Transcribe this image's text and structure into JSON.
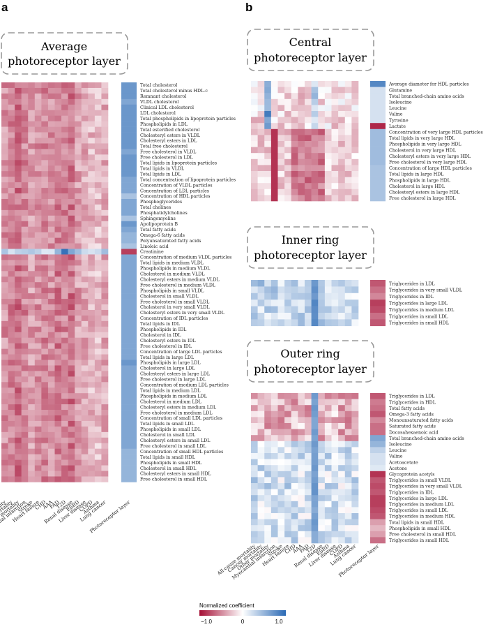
{
  "panel_labels": {
    "a": "a",
    "b": "b"
  },
  "titles": {
    "average": [
      "Average",
      "photoreceptor layer"
    ],
    "central": [
      "Central",
      "photoreceptor layer"
    ],
    "inner": [
      "Inner ring",
      "photoreceptor layer"
    ],
    "outer": [
      "Outer ring",
      "photoreceptor layer"
    ]
  },
  "legend": {
    "title": "Normalized coefficient",
    "ticks": [
      "−1.0",
      "0",
      "1.0"
    ],
    "min_color": "#a50f35",
    "mid_color": "#ffffff",
    "max_color": "#2b6ab5"
  },
  "chart_data": {
    "type": "heatmap",
    "color_scale": {
      "min": -1.0,
      "max": 1.0
    },
    "diseases": [
      "All-cause mortality",
      "Cancer mortality",
      "Other mortality",
      "Myocardial infarction",
      "Stroke",
      "Heart failure",
      "CHD",
      "AAA",
      "PAD",
      "T2D",
      "Renal disease",
      "ESRD",
      "Liver disease",
      "COPD",
      "Asthma",
      "Lung cancer"
    ],
    "column_label": "Photoreceptor layer",
    "panels": [
      {
        "name": "average",
        "rows": [
          "Total cholesterol",
          "Total cholesterol minus HDL-c",
          "Remnant cholesterol",
          "VLDL cholesterol",
          "Clinical LDL cholesterol",
          "LDL cholesterol",
          "Total phospholipids in lipoprotein particles",
          "Phospholipids in LDL",
          "Total esterified cholesterol",
          "Cholesteryl esters in VLDL",
          "Cholesteryl esters in LDL",
          "Total free cholesterol",
          "Free cholesterol in VLDL",
          "Free cholesterol in LDL",
          "Total lipids in lipoprotein particles",
          "Total lipids in VLDL",
          "Total lipids in LDL",
          "Total concentration of lipoprotein particles",
          "Concentration of VLDL particles",
          "Concentration of LDL particles",
          "Concentration of HDL particles",
          "Phosphoglycerides",
          "Total cholines",
          "Phosphatidylcholines",
          "Sphingomyelins",
          "Apolipoprotein B",
          "Total fatty acids",
          "Omega-6 fatty acids",
          "Polyunsaturated fatty acids",
          "Linoleic acid",
          "Creatinine",
          "Concentration of medium VLDL particles",
          "Total lipids in medium VLDL",
          "Phospholipids in medium VLDL",
          "Cholesterol in medium VLDL",
          "Cholesteryl esters in medium VLDL",
          "Free cholesterol in medium VLDL",
          "Phospholipids in small VLDL",
          "Cholesterol in small VLDL",
          "Free cholesterol in small VLDL",
          "Cholesterol in very small VLDL",
          "Cholesteryl esters in very small VLDL",
          "Concentration of IDL particles",
          "Total lipids in IDL",
          "Phospholipids in IDL",
          "Cholesterol in IDL",
          "Cholesteryl esters in IDL",
          "Free cholesterol in IDL",
          "Concentration of large LDL particles",
          "Total lipids in large LDL",
          "Phospholipids in large LDL",
          "Cholesterol in large LDL",
          "Cholesteryl esters in large LDL",
          "Free cholesterol in large LDL",
          "Concentration of medium LDL particles",
          "Total lipids in medium LDL",
          "Phospholipids in medium LDL",
          "Cholesterol in medium LDL",
          "Cholesteryl esters in medium LDL",
          "Free cholesterol in medium LDL",
          "Concentration of small LDL particles",
          "Total lipids in small LDL",
          "Phospholipids in small LDL",
          "Cholesterol in small LDL",
          "Cholesteryl esters in small LDL",
          "Free cholesterol in small LDL",
          "Concentration of small HDL particles",
          "Total lipids in small HDL",
          "Phospholipids in small HDL",
          "Cholesterol in small HDL",
          "Cholesteryl esters in small HDL",
          "Free cholesterol in small HDL"
        ],
        "photoreceptor": [
          0.7,
          0.7,
          0.7,
          0.6,
          0.7,
          0.7,
          0.7,
          0.7,
          0.7,
          0.7,
          0.7,
          0.7,
          0.6,
          0.7,
          0.7,
          0.7,
          0.7,
          0.6,
          0.6,
          0.6,
          0.4,
          0.6,
          0.6,
          0.6,
          0.4,
          0.7,
          0.6,
          0.5,
          0.5,
          0.4,
          -0.8,
          0.6,
          0.6,
          0.6,
          0.6,
          0.6,
          0.6,
          0.6,
          0.6,
          0.6,
          0.6,
          0.6,
          0.6,
          0.6,
          0.6,
          0.6,
          0.6,
          0.6,
          0.6,
          0.6,
          0.7,
          0.6,
          0.6,
          0.6,
          0.6,
          0.6,
          0.6,
          0.6,
          0.6,
          0.6,
          0.6,
          0.6,
          0.6,
          0.6,
          0.6,
          0.6,
          0.5,
          0.5,
          0.5,
          0.5,
          0.5,
          0.5
        ],
        "matrix_pattern": {
          "base": [
            -0.45,
            -0.5,
            -0.6,
            -0.5,
            -0.4,
            -0.45,
            -0.5,
            -0.45,
            -0.55,
            -0.5,
            -0.6,
            -0.4,
            -0.35,
            -0.3,
            -0.25,
            -0.35
          ],
          "notes": "mostly red (negative); creatinine row blue (positive) for most diseases"
        }
      },
      {
        "name": "central",
        "rows": [
          "Average diameter for HDL particles",
          "Glutamine",
          "Total branched-chain amino acids",
          "Isoleucine",
          "Leucine",
          "Valine",
          "Tyrosine",
          "Lactate",
          "Concentration of very large HDL particles",
          "Total lipids in very large HDL",
          "Phospholipids in very large HDL",
          "Cholesterol in very large HDL",
          "Cholesteryl esters in very large HDL",
          "Free cholesterol in very large HDL",
          "Concentration of large HDL particles",
          "Total lipids in large HDL",
          "Phospholipids in large HDL",
          "Cholesterol in large HDL",
          "Cholesteryl esters in large HDL",
          "Free cholesterol in large HDL"
        ],
        "photoreceptor": [
          0.8,
          0.2,
          0.2,
          0.2,
          0.2,
          0.2,
          0.2,
          -0.9,
          0.45,
          0.45,
          0.45,
          0.45,
          0.45,
          0.45,
          0.4,
          0.4,
          0.4,
          0.4,
          0.4,
          0.4
        ]
      },
      {
        "name": "inner",
        "rows": [
          "Triglycerides in LDL",
          "Triglycerides in very small VLDL",
          "Triglycerides in IDL",
          "Triglycerides in large LDL",
          "Triglycerides in medium LDL",
          "Triglycerides in small LDL",
          "Triglycerides in small HDL"
        ],
        "photoreceptor": [
          -0.7,
          -0.6,
          -0.5,
          -0.8,
          -0.75,
          -0.6,
          -0.7
        ]
      },
      {
        "name": "outer",
        "rows": [
          "Triglycerides in LDL",
          "Triglycerides in HDL",
          "Total fatty acids",
          "Omega-3 fatty acids",
          "Monounsaturated fatty acids",
          "Saturated fatty acids",
          "Docosahexaenoic acid",
          "Total branched-chain amino acids",
          "Isoleucine",
          "Leucine",
          "Valine",
          "Acetoacetate",
          "Acetone",
          "Glycoprotein acetyls",
          "Triglycerides in small VLDL",
          "Triglycerides in very small VLDL",
          "Triglycerides in IDL",
          "Triglycerides in large LDL",
          "Triglycerides in medium LDL",
          "Triglycerides in small LDL",
          "Triglycerides in medium HDL",
          "Total lipids in small HDL",
          "Phospholipids in small HDL",
          "Free cholesterol in small HDL",
          "Triglycerides in small HDL"
        ],
        "photoreceptor": [
          -0.7,
          -0.55,
          -0.6,
          -0.7,
          -0.5,
          -0.6,
          -0.6,
          0.6,
          0.5,
          0.3,
          0.2,
          0.2,
          0.15,
          -0.85,
          -0.7,
          -0.75,
          -0.7,
          -0.8,
          -0.8,
          -0.75,
          -0.7,
          -0.4,
          -0.3,
          -0.4,
          -0.6
        ]
      }
    ]
  }
}
